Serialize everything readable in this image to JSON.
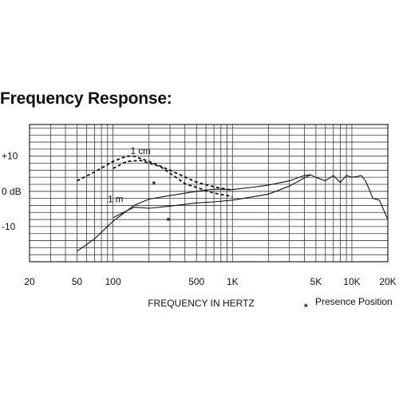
{
  "title": "Frequency Response:",
  "chart_data": {
    "type": "line",
    "xscale": "log",
    "xlim": [
      20,
      20000
    ],
    "ylim": [
      -20,
      19
    ],
    "xlabel": "FREQUENCY IN HERTZ",
    "ylabel": "",
    "grid": true,
    "x_ticks": [
      {
        "value": 20,
        "label": "20"
      },
      {
        "value": 50,
        "label": "50"
      },
      {
        "value": 100,
        "label": "100"
      },
      {
        "value": 500,
        "label": "500"
      },
      {
        "value": 1000,
        "label": "1K"
      },
      {
        "value": 5000,
        "label": "5K"
      },
      {
        "value": 10000,
        "label": "10K"
      },
      {
        "value": 20000,
        "label": "20K"
      }
    ],
    "y_ticks": [
      {
        "value": 10,
        "label": "+10"
      },
      {
        "value": 0,
        "label": "0 dB"
      },
      {
        "value": -10,
        "label": "-10"
      }
    ],
    "annotations": [
      {
        "text": "1 cm",
        "x": 170,
        "y": 11.5
      },
      {
        "text": "1 m",
        "x": 105,
        "y": -2.2
      },
      {
        "text": "*",
        "x": 220,
        "y": 2.8
      },
      {
        "text": "*",
        "x": 290,
        "y": -7.5
      }
    ],
    "legend": {
      "symbol": "*",
      "text": "Presence Position"
    },
    "series": [
      {
        "style": "dashed",
        "x": [
          50,
          70,
          100,
          130,
          150,
          200,
          300,
          500,
          700,
          1000
        ],
        "y": [
          3.0,
          5.5,
          8.5,
          10.0,
          10.0,
          8.5,
          6.0,
          2.6,
          1.3,
          0.3
        ]
      },
      {
        "style": "dashed",
        "x": [
          100,
          130,
          170,
          250,
          400,
          700,
          1000
        ],
        "y": [
          6.5,
          8.5,
          8.8,
          7.0,
          2.2,
          -0.5,
          -1.5
        ]
      },
      {
        "style": "solid",
        "x": [
          50,
          70,
          100,
          150,
          200,
          300,
          500,
          700,
          1000,
          1500,
          2000,
          3000,
          4000,
          4500,
          5000,
          6000,
          7000,
          8000,
          9000,
          10000,
          11000,
          12000,
          13000,
          14000,
          15000,
          17000,
          20000
        ],
        "y": [
          -17.0,
          -13.5,
          -8.5,
          -4.0,
          -2.2,
          -1.2,
          0.0,
          0.6,
          0.5,
          1.2,
          1.8,
          3.0,
          4.5,
          4.7,
          4.0,
          3.0,
          4.5,
          2.5,
          4.5,
          4.0,
          4.2,
          4.5,
          3.0,
          0.5,
          -2.0,
          -2.5,
          -8.0
        ]
      },
      {
        "style": "solid",
        "x": [
          100,
          150,
          200,
          300,
          500,
          700,
          1000,
          1500,
          2000,
          3000,
          4000,
          4500
        ],
        "y": [
          -7.5,
          -4.5,
          -4.8,
          -4.2,
          -3.3,
          -3.0,
          -2.5,
          -1.5,
          -0.8,
          1.5,
          3.8,
          4.7
        ]
      }
    ]
  }
}
